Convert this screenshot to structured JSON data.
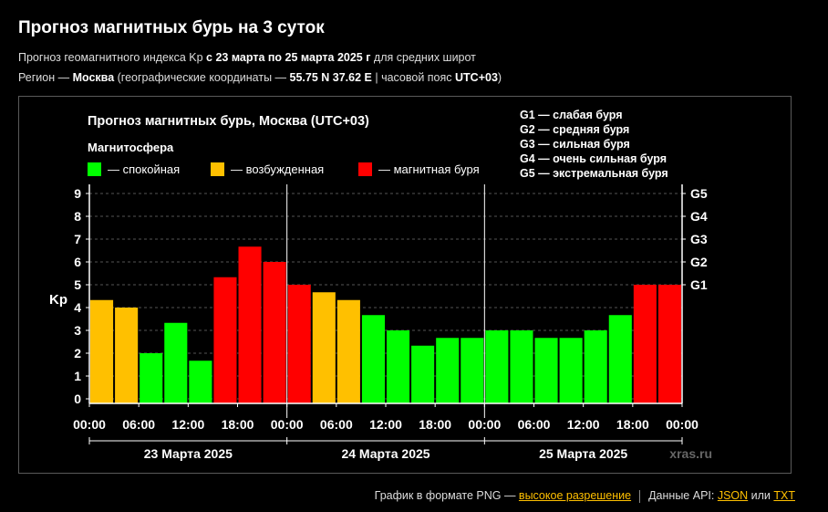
{
  "header": {
    "title": "Прогноз магнитных бурь на 3 суток",
    "line1": {
      "prefix": "Прогноз геомагнитного индекса Kp ",
      "range": "с 23 марта по 25 марта 2025 г",
      "suffix": " для средних широт"
    },
    "line2": {
      "prefix": "Регион — ",
      "city": "Москва",
      "mid": " (географические координаты — ",
      "coords": "55.75 N 37.62 E",
      "mid2": " | часовой пояс ",
      "tz": "UTC+03",
      "suffix": ")"
    }
  },
  "chart_data": {
    "type": "bar",
    "title": "Прогноз магнитных бурь, Москва (UTC+03)",
    "ylabel": "Kp",
    "ylim": [
      0,
      9
    ],
    "yticks": [
      "0",
      "1",
      "2",
      "3",
      "4",
      "5",
      "6",
      "7",
      "8",
      "9"
    ],
    "grid": true,
    "legend_title": "Магнитосфера",
    "legend": [
      {
        "label": "— спокойная",
        "color": "#00ff00"
      },
      {
        "label": "— возбужденная",
        "color": "#ffc000"
      },
      {
        "label": "— магнитная буря",
        "color": "#ff0000"
      }
    ],
    "g_legend": [
      "G1 — слабая буря",
      "G2 — средняя буря",
      "G3 — сильная буря",
      "G4 — очень сильная буря",
      "G5 — экстремальная буря"
    ],
    "g_axis": [
      {
        "label": "G1",
        "kp": 5
      },
      {
        "label": "G2",
        "kp": 6
      },
      {
        "label": "G3",
        "kp": 7
      },
      {
        "label": "G4",
        "kp": 8
      },
      {
        "label": "G5",
        "kp": 9
      }
    ],
    "xticks": [
      "00:00",
      "06:00",
      "12:00",
      "18:00",
      "00:00",
      "06:00",
      "12:00",
      "18:00",
      "00:00",
      "06:00",
      "12:00",
      "18:00",
      "00:00"
    ],
    "days": [
      "23 Марта 2025",
      "24 Марта 2025",
      "25 Марта 2025"
    ],
    "values": [
      4.33,
      4.0,
      2.0,
      3.33,
      1.67,
      5.33,
      6.67,
      6.0,
      5.0,
      4.67,
      4.33,
      3.67,
      3.0,
      2.33,
      2.67,
      2.67,
      3.0,
      3.0,
      2.67,
      2.67,
      3.0,
      3.67,
      5.0,
      5.0
    ],
    "colors": {
      "quiet": "#00ff00",
      "active": "#ffc000",
      "storm": "#ff0000"
    },
    "watermark": "xras.ru"
  },
  "footer": {
    "png_text": "График в формате PNG — ",
    "png_link": "высокое разрешение",
    "api_text": "Данные API: ",
    "json_link": "JSON",
    "or_text": " или ",
    "txt_link": "TXT"
  }
}
